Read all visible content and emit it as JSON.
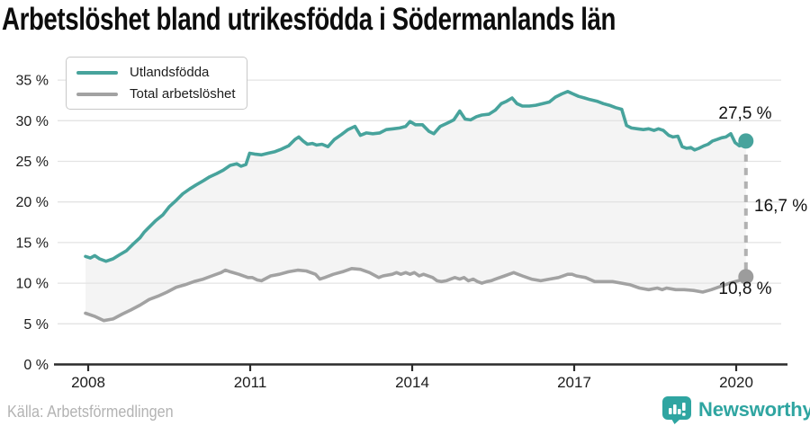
{
  "title": "Arbetslöshet bland utrikesfödda i Södermanlands län",
  "annotations": {
    "foreign_born_value": "27,5 %",
    "difference_value": "16,7 %",
    "total_value": "10,8 %"
  },
  "footer": {
    "source": "Källa: Arbetsförmedlingen",
    "brand": "Newsworthy"
  },
  "colors": {
    "accent_teal": "#47a39c",
    "line_gray": "#a2a2a2",
    "dot_gray": "#9c9c9c",
    "fill_between": "#f4f4f4",
    "gridline": "#e3e3e3",
    "axis": "#2b2b2b",
    "dashed_connector": "#b1b1b1",
    "muted_text": "#b3b3b3",
    "brand_teal": "#2fa5a1"
  },
  "chart_data": {
    "type": "line",
    "title": "Arbetslöshet bland utrikesfödda i Södermanlands län",
    "xlabel": "",
    "ylabel": "",
    "x_ticks": [
      2008,
      2011,
      2014,
      2017,
      2020
    ],
    "x_tick_labels": [
      "2008",
      "2011",
      "2014",
      "2017",
      "2020"
    ],
    "y_ticks": [
      0,
      5,
      10,
      15,
      20,
      25,
      30,
      35
    ],
    "y_tick_labels": [
      "0 %",
      "5 %",
      "10 %",
      "15 %",
      "20 %",
      "25 %",
      "30 %",
      "35 %"
    ],
    "ylim": [
      0,
      36.5
    ],
    "xlim": [
      2007.9,
      2020.45
    ],
    "grid": "horizontal",
    "legend_position": "top-left",
    "difference_label": "16,7 %",
    "series": [
      {
        "name": "Utlandsfödda",
        "color": "#47a39c",
        "dot_color": "#47a39c",
        "end_label": "27,5 %",
        "end_value": 27.5,
        "points": [
          [
            2007.95,
            13.3
          ],
          [
            2008.04,
            13.1
          ],
          [
            2008.12,
            13.4
          ],
          [
            2008.21,
            13.0
          ],
          [
            2008.33,
            12.7
          ],
          [
            2008.46,
            13.0
          ],
          [
            2008.58,
            13.5
          ],
          [
            2008.71,
            14.0
          ],
          [
            2008.83,
            14.8
          ],
          [
            2008.96,
            15.6
          ],
          [
            2009.04,
            16.3
          ],
          [
            2009.13,
            16.9
          ],
          [
            2009.25,
            17.7
          ],
          [
            2009.38,
            18.4
          ],
          [
            2009.5,
            19.4
          ],
          [
            2009.63,
            20.2
          ],
          [
            2009.75,
            21.0
          ],
          [
            2009.88,
            21.6
          ],
          [
            2010.0,
            22.1
          ],
          [
            2010.13,
            22.6
          ],
          [
            2010.25,
            23.1
          ],
          [
            2010.38,
            23.5
          ],
          [
            2010.5,
            23.9
          ],
          [
            2010.63,
            24.5
          ],
          [
            2010.75,
            24.7
          ],
          [
            2010.83,
            24.4
          ],
          [
            2010.92,
            24.6
          ],
          [
            2010.99,
            26.0
          ],
          [
            2011.08,
            25.9
          ],
          [
            2011.21,
            25.8
          ],
          [
            2011.33,
            26.0
          ],
          [
            2011.46,
            26.2
          ],
          [
            2011.58,
            26.5
          ],
          [
            2011.71,
            26.9
          ],
          [
            2011.83,
            27.7
          ],
          [
            2011.9,
            28.0
          ],
          [
            2011.98,
            27.5
          ],
          [
            2012.06,
            27.1
          ],
          [
            2012.15,
            27.2
          ],
          [
            2012.23,
            27.0
          ],
          [
            2012.33,
            27.1
          ],
          [
            2012.44,
            26.8
          ],
          [
            2012.56,
            27.7
          ],
          [
            2012.69,
            28.3
          ],
          [
            2012.81,
            28.9
          ],
          [
            2012.94,
            29.3
          ],
          [
            2013.04,
            28.2
          ],
          [
            2013.15,
            28.5
          ],
          [
            2013.27,
            28.4
          ],
          [
            2013.4,
            28.5
          ],
          [
            2013.52,
            28.9
          ],
          [
            2013.65,
            29.0
          ],
          [
            2013.77,
            29.1
          ],
          [
            2013.88,
            29.3
          ],
          [
            2013.96,
            29.9
          ],
          [
            2014.06,
            29.5
          ],
          [
            2014.19,
            29.5
          ],
          [
            2014.31,
            28.7
          ],
          [
            2014.4,
            28.4
          ],
          [
            2014.52,
            29.3
          ],
          [
            2014.65,
            29.7
          ],
          [
            2014.77,
            30.1
          ],
          [
            2014.88,
            31.2
          ],
          [
            2014.98,
            30.2
          ],
          [
            2015.08,
            30.1
          ],
          [
            2015.19,
            30.5
          ],
          [
            2015.29,
            30.7
          ],
          [
            2015.42,
            30.8
          ],
          [
            2015.54,
            31.3
          ],
          [
            2015.65,
            32.1
          ],
          [
            2015.75,
            32.4
          ],
          [
            2015.85,
            32.8
          ],
          [
            2015.94,
            32.1
          ],
          [
            2016.04,
            31.8
          ],
          [
            2016.17,
            31.8
          ],
          [
            2016.29,
            31.9
          ],
          [
            2016.42,
            32.1
          ],
          [
            2016.54,
            32.3
          ],
          [
            2016.65,
            32.9
          ],
          [
            2016.77,
            33.3
          ],
          [
            2016.88,
            33.6
          ],
          [
            2016.98,
            33.3
          ],
          [
            2017.08,
            33.0
          ],
          [
            2017.19,
            32.8
          ],
          [
            2017.29,
            32.6
          ],
          [
            2017.42,
            32.4
          ],
          [
            2017.54,
            32.1
          ],
          [
            2017.65,
            31.9
          ],
          [
            2017.77,
            31.6
          ],
          [
            2017.88,
            31.4
          ],
          [
            2017.97,
            29.4
          ],
          [
            2018.06,
            29.1
          ],
          [
            2018.17,
            29.0
          ],
          [
            2018.28,
            28.9
          ],
          [
            2018.38,
            29.0
          ],
          [
            2018.48,
            28.8
          ],
          [
            2018.56,
            29.0
          ],
          [
            2018.65,
            28.8
          ],
          [
            2018.75,
            28.2
          ],
          [
            2018.83,
            28.0
          ],
          [
            2018.92,
            28.1
          ],
          [
            2019.0,
            26.8
          ],
          [
            2019.08,
            26.6
          ],
          [
            2019.16,
            26.7
          ],
          [
            2019.23,
            26.4
          ],
          [
            2019.31,
            26.6
          ],
          [
            2019.4,
            26.9
          ],
          [
            2019.48,
            27.1
          ],
          [
            2019.56,
            27.5
          ],
          [
            2019.65,
            27.7
          ],
          [
            2019.73,
            27.9
          ],
          [
            2019.81,
            28.0
          ],
          [
            2019.9,
            28.4
          ],
          [
            2019.98,
            27.3
          ],
          [
            2020.06,
            26.9
          ],
          [
            2020.13,
            27.0
          ],
          [
            2020.18,
            27.5
          ]
        ]
      },
      {
        "name": "Total arbetslöshet",
        "color": "#a2a2a2",
        "dot_color": "#9c9c9c",
        "end_label": "10,8 %",
        "end_value": 10.8,
        "points": [
          [
            2007.95,
            6.3
          ],
          [
            2008.13,
            5.9
          ],
          [
            2008.29,
            5.4
          ],
          [
            2008.46,
            5.6
          ],
          [
            2008.63,
            6.2
          ],
          [
            2008.79,
            6.7
          ],
          [
            2008.96,
            7.3
          ],
          [
            2009.13,
            8.0
          ],
          [
            2009.29,
            8.4
          ],
          [
            2009.46,
            8.9
          ],
          [
            2009.63,
            9.5
          ],
          [
            2009.79,
            9.8
          ],
          [
            2009.96,
            10.2
          ],
          [
            2010.13,
            10.5
          ],
          [
            2010.29,
            10.9
          ],
          [
            2010.46,
            11.3
          ],
          [
            2010.54,
            11.6
          ],
          [
            2010.63,
            11.4
          ],
          [
            2010.79,
            11.1
          ],
          [
            2010.96,
            10.7
          ],
          [
            2011.04,
            10.7
          ],
          [
            2011.13,
            10.4
          ],
          [
            2011.21,
            10.3
          ],
          [
            2011.38,
            10.9
          ],
          [
            2011.54,
            11.1
          ],
          [
            2011.71,
            11.4
          ],
          [
            2011.88,
            11.6
          ],
          [
            2012.04,
            11.5
          ],
          [
            2012.21,
            11.1
          ],
          [
            2012.29,
            10.5
          ],
          [
            2012.38,
            10.7
          ],
          [
            2012.54,
            11.1
          ],
          [
            2012.71,
            11.4
          ],
          [
            2012.88,
            11.8
          ],
          [
            2013.04,
            11.7
          ],
          [
            2013.21,
            11.3
          ],
          [
            2013.38,
            10.7
          ],
          [
            2013.46,
            10.9
          ],
          [
            2013.63,
            11.1
          ],
          [
            2013.71,
            11.3
          ],
          [
            2013.79,
            11.1
          ],
          [
            2013.88,
            11.3
          ],
          [
            2013.96,
            11.1
          ],
          [
            2014.04,
            11.3
          ],
          [
            2014.13,
            10.9
          ],
          [
            2014.21,
            11.1
          ],
          [
            2014.38,
            10.7
          ],
          [
            2014.46,
            10.3
          ],
          [
            2014.54,
            10.2
          ],
          [
            2014.63,
            10.3
          ],
          [
            2014.71,
            10.5
          ],
          [
            2014.79,
            10.7
          ],
          [
            2014.88,
            10.5
          ],
          [
            2014.96,
            10.7
          ],
          [
            2015.04,
            10.3
          ],
          [
            2015.13,
            10.5
          ],
          [
            2015.21,
            10.2
          ],
          [
            2015.29,
            10.0
          ],
          [
            2015.38,
            10.2
          ],
          [
            2015.46,
            10.3
          ],
          [
            2015.54,
            10.5
          ],
          [
            2015.71,
            10.9
          ],
          [
            2015.88,
            11.3
          ],
          [
            2015.96,
            11.1
          ],
          [
            2016.04,
            10.9
          ],
          [
            2016.21,
            10.5
          ],
          [
            2016.38,
            10.3
          ],
          [
            2016.54,
            10.5
          ],
          [
            2016.71,
            10.7
          ],
          [
            2016.88,
            11.1
          ],
          [
            2016.96,
            11.1
          ],
          [
            2017.04,
            10.9
          ],
          [
            2017.21,
            10.7
          ],
          [
            2017.38,
            10.2
          ],
          [
            2017.54,
            10.2
          ],
          [
            2017.71,
            10.2
          ],
          [
            2017.88,
            10.0
          ],
          [
            2018.04,
            9.8
          ],
          [
            2018.21,
            9.4
          ],
          [
            2018.38,
            9.2
          ],
          [
            2018.54,
            9.4
          ],
          [
            2018.63,
            9.2
          ],
          [
            2018.71,
            9.4
          ],
          [
            2018.88,
            9.2
          ],
          [
            2019.04,
            9.2
          ],
          [
            2019.21,
            9.1
          ],
          [
            2019.38,
            8.9
          ],
          [
            2019.54,
            9.2
          ],
          [
            2019.71,
            9.6
          ],
          [
            2019.88,
            10.0
          ],
          [
            2020.04,
            10.3
          ],
          [
            2020.18,
            10.8
          ]
        ]
      }
    ]
  }
}
